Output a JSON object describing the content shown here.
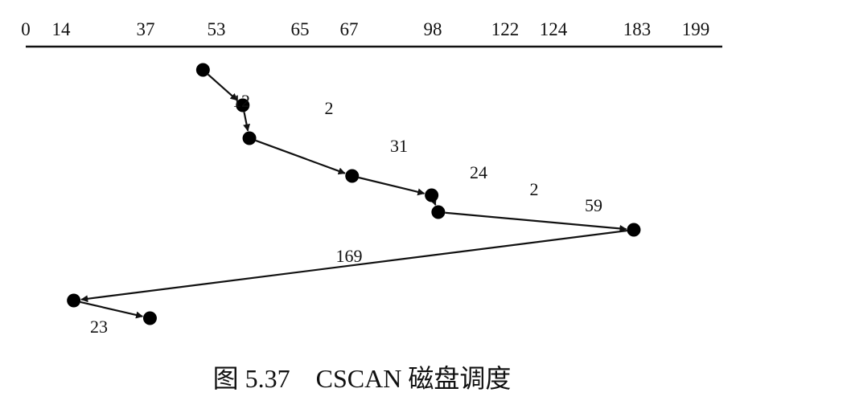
{
  "axis": {
    "ticks": [
      "0",
      "14",
      "37",
      "53",
      "65",
      "67",
      "98",
      "122",
      "124",
      "183",
      "199"
    ]
  },
  "path": {
    "points": [
      {
        "track": 53
      },
      {
        "track": 65
      },
      {
        "track": 67
      },
      {
        "track": 98
      },
      {
        "track": 122
      },
      {
        "track": 124
      },
      {
        "track": 183
      },
      {
        "track": 14
      },
      {
        "track": 37
      }
    ],
    "segment_labels": [
      "12",
      "2",
      "31",
      "24",
      "2",
      "59",
      "169",
      "23"
    ]
  },
  "caption": "图 5.37　CSCAN 磁盘调度"
}
